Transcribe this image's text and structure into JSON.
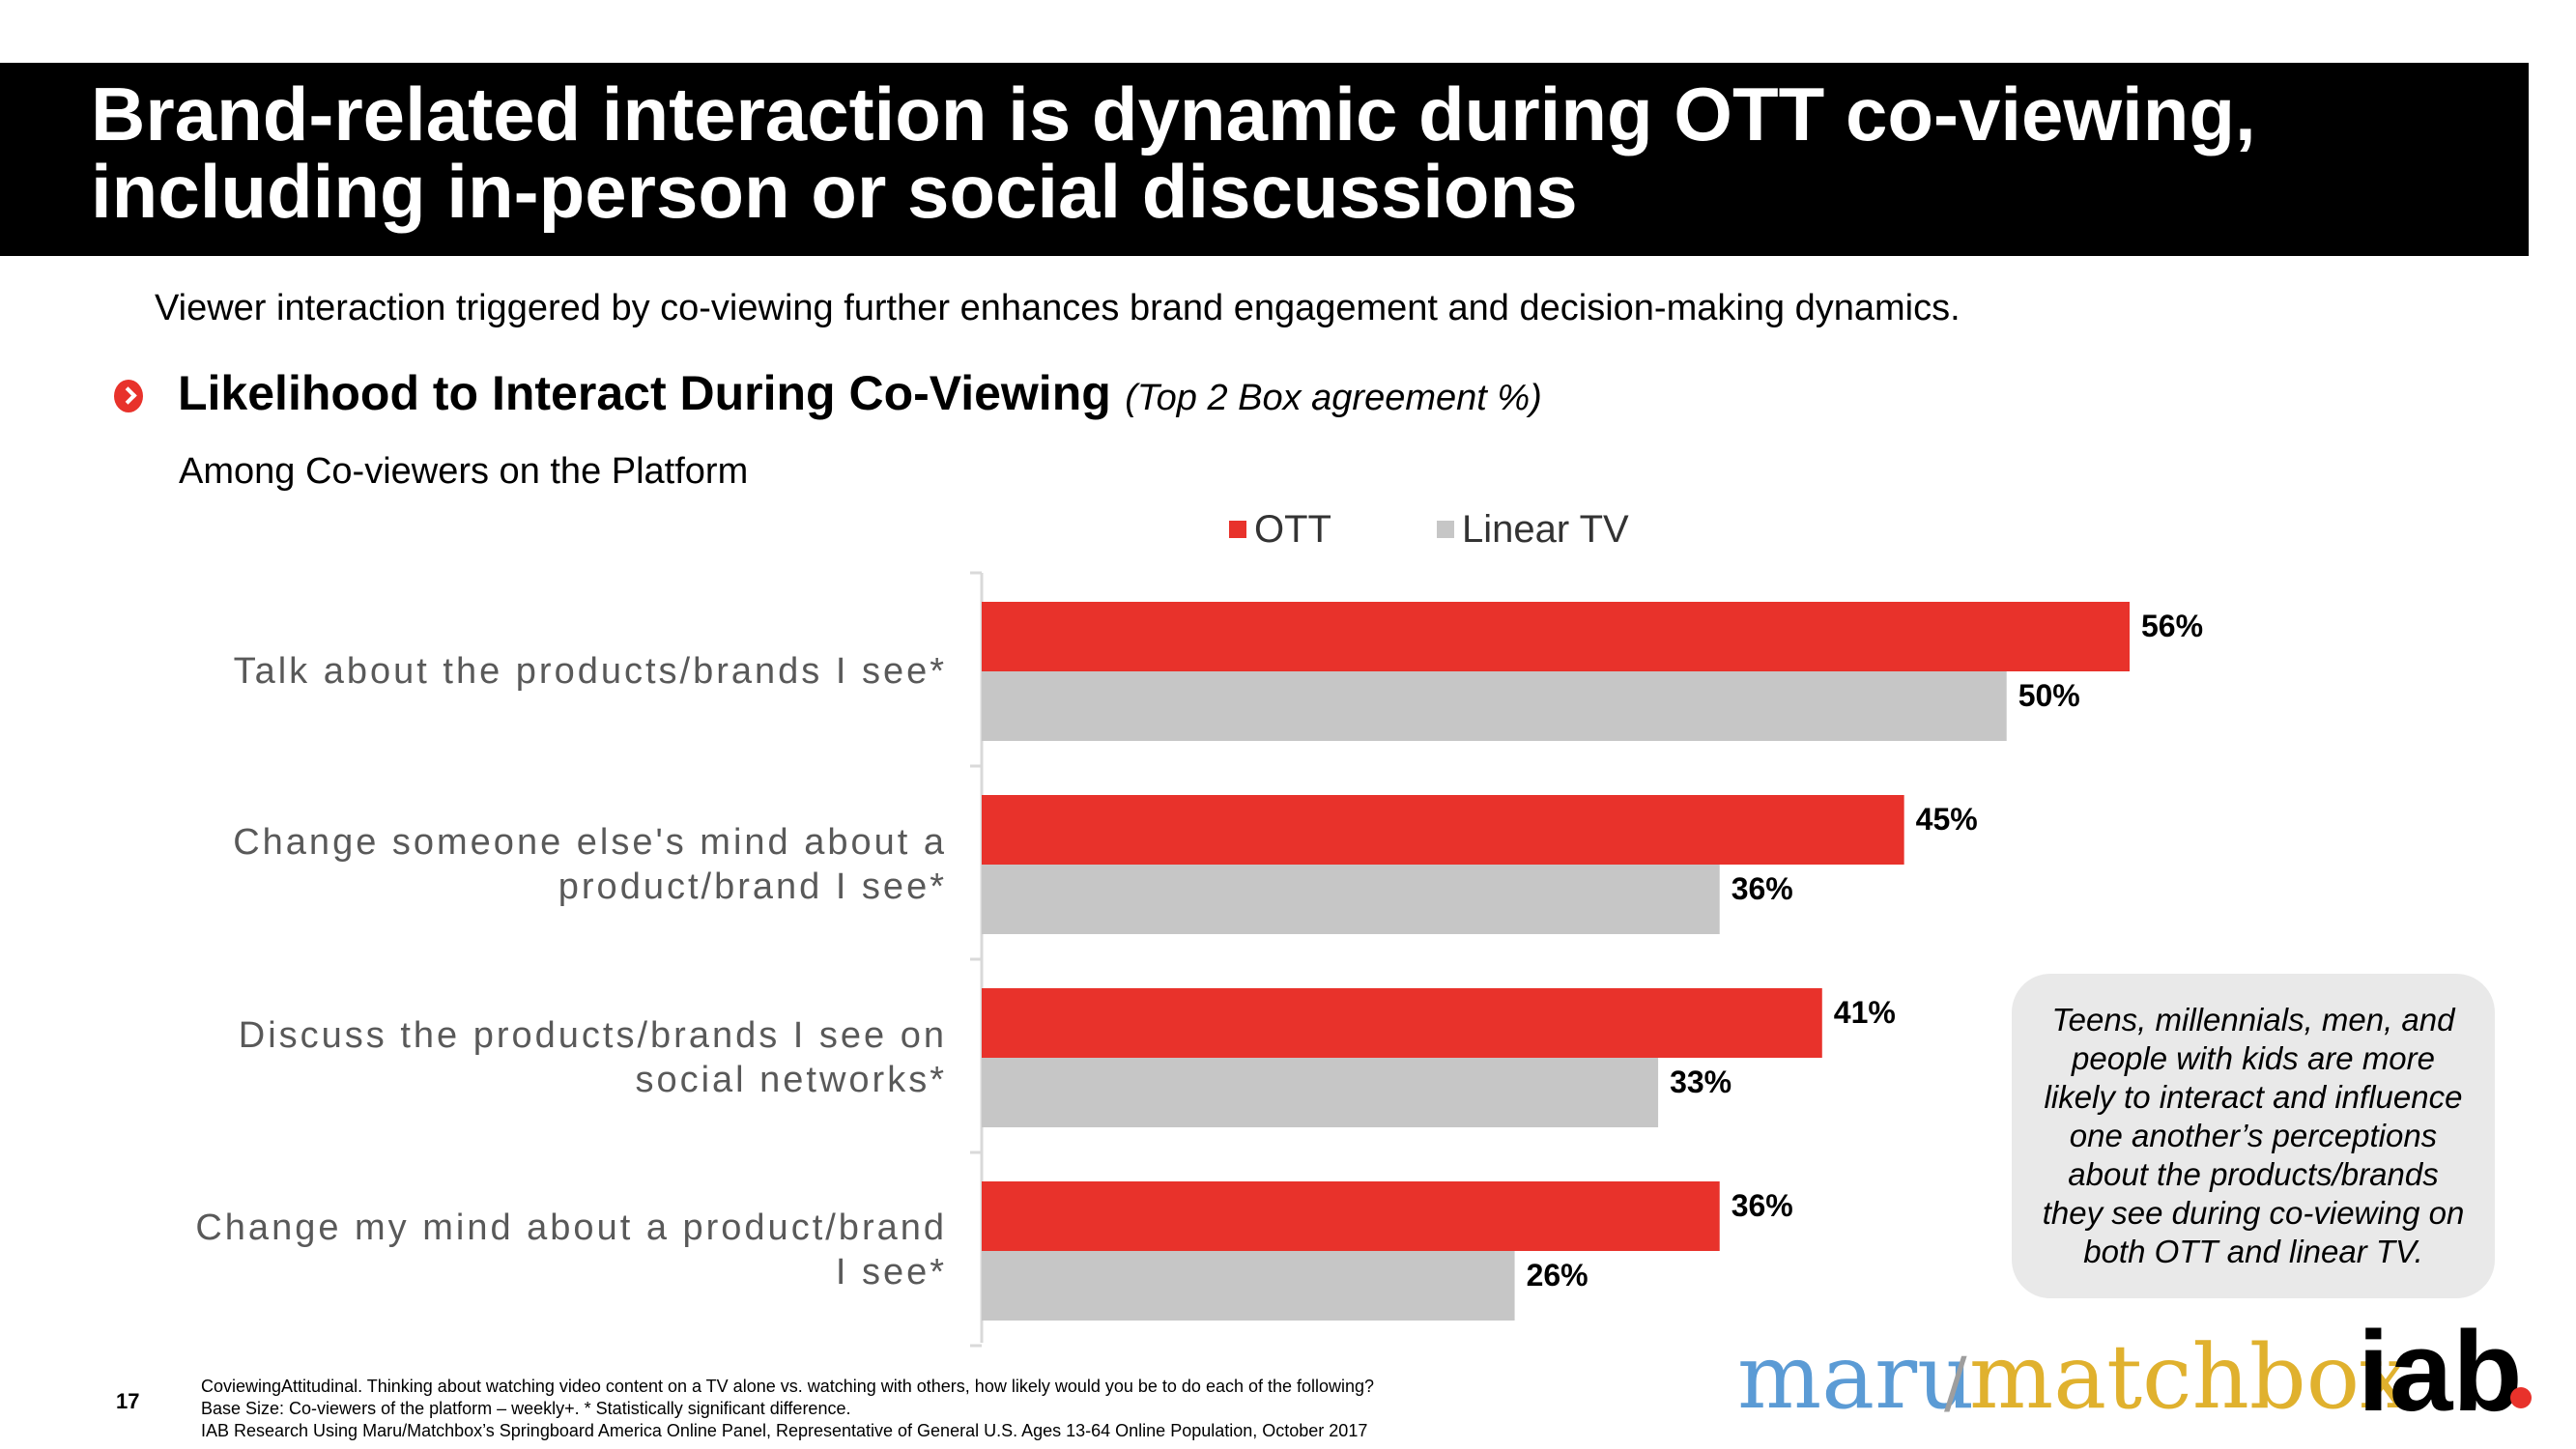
{
  "header": {
    "title_line1": "Brand-related interaction is dynamic during OTT co-viewing,",
    "title_line2": "including in-person or social discussions"
  },
  "subtitle": "Viewer interaction triggered by co-viewing further enhances brand engagement and decision-making dynamics.",
  "section": {
    "title": "Likelihood to Interact During Co-Viewing",
    "qualifier": "(Top 2 Box agreement %)",
    "base": "Among Co-viewers on the Platform"
  },
  "colors": {
    "ott": "#e8322b",
    "linear": "#c6c6c6",
    "title_bg": "#000000"
  },
  "chart_data": {
    "type": "bar",
    "orientation": "horizontal",
    "categories": [
      "Talk about the products/brands I see*",
      "Change someone else's mind about a product/brand I see*",
      "Discuss the products/brands I see on social networks*",
      "Change my mind about a product/brand I see*"
    ],
    "series": [
      {
        "name": "OTT",
        "values": [
          56,
          45,
          41,
          36
        ],
        "labels": [
          "56%",
          "45%",
          "41%",
          "36%"
        ]
      },
      {
        "name": "Linear TV",
        "values": [
          50,
          36,
          33,
          26
        ],
        "labels": [
          "50%",
          "36%",
          "33%",
          "26%"
        ]
      }
    ],
    "legend_position": "top"
  },
  "category_labels": [
    "Talk about the products/brands I see*",
    "Change someone else's mind about a\nproduct/brand I see*",
    "Discuss the products/brands I see on\nsocial networks*",
    "Change my mind about a product/brand\nI see*"
  ],
  "callout": "Teens, millennials, men, and people with kids are more likely to interact and influence one another’s perceptions about the products/brands they see during co-viewing on both OTT and linear TV.",
  "footer": {
    "page_number": "17",
    "note1": "CoviewingAttitudinal. Thinking about watching video content on a TV alone vs. watching with others, how likely would you be to do each of the following?",
    "note2": "Base Size: Co-viewers of the platform – weekly+. * Statistically significant difference.",
    "note3": "IAB Research Using Maru/Matchbox’s Springboard America Online Panel, Representative of General U.S. Ages 13-64 Online Population, October 2017"
  },
  "logos": {
    "maru": "maru",
    "slash": "/",
    "matchbox": "matchbox",
    "iab": "iab"
  }
}
